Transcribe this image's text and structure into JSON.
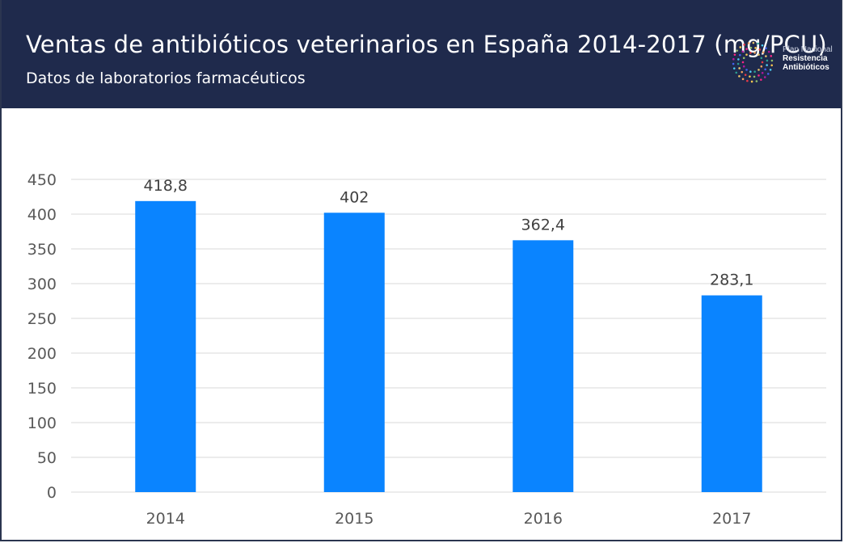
{
  "header": {
    "title": "Ventas de antibióticos veterinarios en España 2014-2017 (mg/PCU)",
    "subtitle": "Datos de laboratorios farmacéuticos"
  },
  "logo": {
    "line1": "Plan Nacional",
    "line2": "Resistencia",
    "line3": "Antibióticos"
  },
  "colors": {
    "header_bg": "#1f2a4c",
    "bar": "#0a84ff",
    "grid": "#d9d9d9",
    "tick_text": "#595959"
  },
  "chart_data": {
    "type": "bar",
    "title": "Ventas de antibióticos veterinarios en España 2014-2017 (mg/PCU)",
    "subtitle": "Datos de laboratorios farmacéuticos",
    "categories": [
      "2014",
      "2015",
      "2016",
      "2017"
    ],
    "values": [
      418.8,
      402,
      362.4,
      283.1
    ],
    "data_labels": [
      "418,8",
      "402",
      "362,4",
      "283,1"
    ],
    "y_ticks": [
      0,
      50,
      100,
      150,
      200,
      250,
      300,
      350,
      400,
      450
    ],
    "ylim": [
      0,
      450
    ],
    "xlabel": "",
    "ylabel": "",
    "grid": true,
    "legend": "none"
  }
}
